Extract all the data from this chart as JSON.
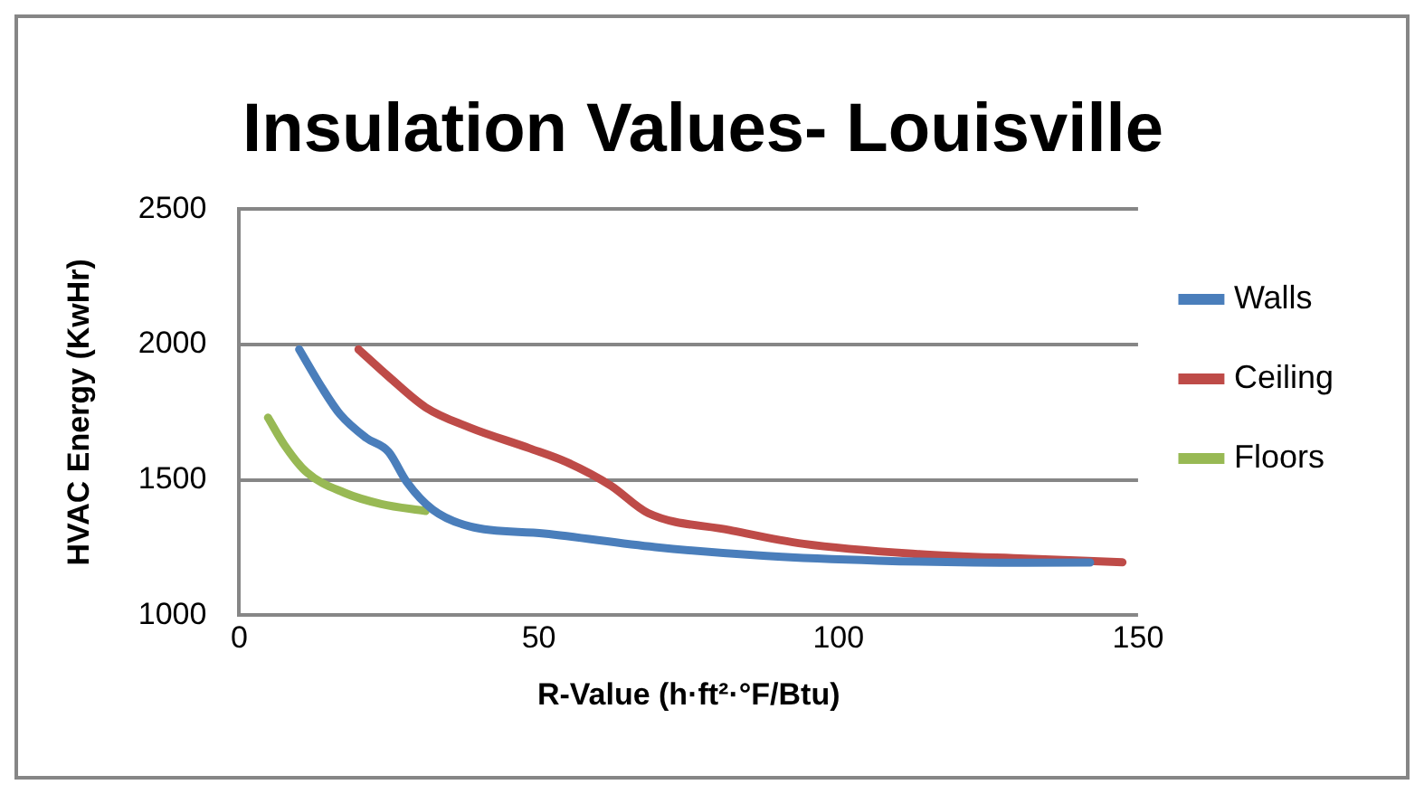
{
  "chart_data": {
    "type": "line",
    "title": "Insulation Values- Louisville",
    "xlabel": "R-Value (h·ft²·°F/Btu)",
    "ylabel": "HVAC Energy (KwHr)",
    "xlim": [
      0,
      150
    ],
    "xticks": [
      0,
      50,
      100,
      150
    ],
    "ylim": [
      1000,
      2500
    ],
    "yticks": [
      1000,
      1500,
      2000,
      2500
    ],
    "grid": "y",
    "legend": "right",
    "marker": "none",
    "line_style": "solid",
    "series": [
      {
        "name": "Walls",
        "color": "#4a7ebb",
        "x": [
          10.0,
          13.7,
          16.8,
          21.2,
          24.9,
          28.0,
          32.3,
          38.5,
          50.9,
          69.4,
          88.0,
          106.6,
          131.3,
          142
        ],
        "values": [
          1982,
          1844,
          1743,
          1655,
          1604,
          1491,
          1390,
          1328,
          1302,
          1252,
          1219,
          1202,
          1194,
          1195
        ]
      },
      {
        "name": "Ceiling",
        "color": "#be4b48",
        "x": [
          19.9,
          24.9,
          31.1,
          38.5,
          48.4,
          54.6,
          62.0,
          68.2,
          81.8,
          94.2,
          112.8,
          131.3,
          147.4
        ],
        "values": [
          1982,
          1882,
          1768,
          1693,
          1617,
          1566,
          1479,
          1378,
          1315,
          1264,
          1227,
          1209,
          1196
        ]
      },
      {
        "name": "Floors",
        "color": "#98b954",
        "x": [
          4.8,
          7.5,
          11.2,
          17.5,
          23.7,
          31.1
        ],
        "values": [
          1730,
          1630,
          1529,
          1453,
          1411,
          1385
        ]
      }
    ]
  }
}
